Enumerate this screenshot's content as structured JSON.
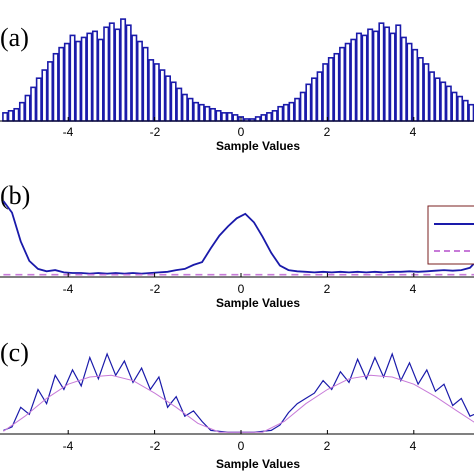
{
  "figure": {
    "panels": [
      {
        "label": "(a)",
        "xlabel": "Sample Values",
        "xticks": [
          -4,
          -2,
          0,
          2,
          4
        ],
        "xlim": [
          -5.5,
          5.5
        ]
      },
      {
        "label": "(b)",
        "xlabel": "Sample Values",
        "xticks": [
          -4,
          -2,
          0,
          2,
          4
        ],
        "xlim": [
          -5.5,
          5.5
        ],
        "legend": {
          "placement": "top-right",
          "entries": [
            {
              "style": "solid",
              "color": "#1a1aaa"
            },
            {
              "style": "dashed",
              "color": "#c77ad8"
            }
          ]
        }
      },
      {
        "label": "(c)",
        "xlabel": "Sample Values",
        "xticks": [
          -4,
          -2,
          0,
          2,
          4
        ],
        "xlim": [
          -5.5,
          5.5
        ]
      }
    ],
    "colors": {
      "primary": "#1a1aaa",
      "secondary": "#c77ad8",
      "axis": "#000000"
    }
  },
  "chart_data": [
    {
      "type": "bar",
      "panel": "(a)",
      "xlabel": "Sample Values",
      "xlim": [
        -5.5,
        5.5
      ],
      "ylim": [
        0,
        105
      ],
      "bar_width": 0.13,
      "x": [
        -5.46,
        -5.33,
        -5.2,
        -5.07,
        -4.94,
        -4.81,
        -4.68,
        -4.55,
        -4.42,
        -4.29,
        -4.16,
        -4.03,
        -3.9,
        -3.77,
        -3.64,
        -3.51,
        -3.38,
        -3.25,
        -3.12,
        -2.99,
        -2.86,
        -2.73,
        -2.6,
        -2.47,
        -2.34,
        -2.21,
        -2.08,
        -1.95,
        -1.82,
        -1.69,
        -1.56,
        -1.43,
        -1.3,
        -1.17,
        -1.04,
        -0.91,
        -0.78,
        -0.65,
        -0.52,
        -0.39,
        -0.26,
        -0.13,
        0.0,
        0.13,
        0.26,
        0.39,
        0.52,
        0.65,
        0.78,
        0.91,
        1.04,
        1.17,
        1.3,
        1.43,
        1.56,
        1.69,
        1.82,
        1.95,
        2.08,
        2.21,
        2.34,
        2.47,
        2.6,
        2.73,
        2.86,
        2.99,
        3.12,
        3.25,
        3.38,
        3.51,
        3.64,
        3.77,
        3.9,
        4.03,
        4.16,
        4.29,
        4.42,
        4.55,
        4.68,
        4.81,
        4.94,
        5.07,
        5.2,
        5.33,
        5.46
      ],
      "values": [
        8,
        10,
        12,
        18,
        25,
        33,
        42,
        50,
        58,
        66,
        72,
        76,
        84,
        78,
        82,
        86,
        88,
        80,
        92,
        96,
        90,
        100,
        94,
        84,
        78,
        72,
        60,
        56,
        50,
        44,
        38,
        32,
        26,
        22,
        18,
        16,
        14,
        12,
        10,
        8,
        8,
        6,
        4,
        2,
        2,
        4,
        6,
        8,
        10,
        14,
        16,
        18,
        22,
        28,
        36,
        42,
        48,
        56,
        62,
        66,
        72,
        76,
        80,
        86,
        84,
        90,
        88,
        96,
        92,
        86,
        94,
        82,
        76,
        70,
        62,
        56,
        48,
        42,
        38,
        34,
        28,
        24,
        20,
        16,
        14
      ]
    },
    {
      "type": "line",
      "panel": "(b)",
      "xlabel": "Sample Values",
      "xlim": [
        -5.5,
        5.5
      ],
      "ylim": [
        0,
        1.6
      ],
      "series": [
        {
          "style": "solid",
          "x": [
            -5.5,
            -5.3,
            -5.1,
            -4.9,
            -4.7,
            -4.5,
            -4.3,
            -4.1,
            -3.9,
            -3.7,
            -3.5,
            -3.3,
            -3.1,
            -2.9,
            -2.7,
            -2.5,
            -2.3,
            -2.1,
            -1.9,
            -1.7,
            -1.5,
            -1.3,
            -1.1,
            -0.9,
            -0.7,
            -0.5,
            -0.3,
            -0.1,
            0.1,
            0.3,
            0.5,
            0.7,
            0.9,
            1.1,
            1.3,
            1.5,
            1.7,
            1.9,
            2.1,
            2.3,
            2.5,
            2.7,
            2.9,
            3.1,
            3.3,
            3.5,
            3.7,
            3.9,
            4.1,
            4.3,
            4.5,
            4.7,
            4.9,
            5.1,
            5.3,
            5.5
          ],
          "values": [
            1.32,
            1.12,
            0.62,
            0.28,
            0.14,
            0.1,
            0.12,
            0.08,
            0.07,
            0.07,
            0.06,
            0.07,
            0.06,
            0.07,
            0.06,
            0.07,
            0.06,
            0.07,
            0.08,
            0.09,
            0.12,
            0.14,
            0.21,
            0.26,
            0.5,
            0.72,
            0.88,
            1.02,
            1.1,
            0.95,
            0.7,
            0.42,
            0.2,
            0.12,
            0.1,
            0.09,
            0.08,
            0.09,
            0.08,
            0.09,
            0.08,
            0.09,
            0.08,
            0.09,
            0.08,
            0.09,
            0.09,
            0.1,
            0.09,
            0.1,
            0.11,
            0.12,
            0.11,
            0.12,
            0.16,
            0.32
          ]
        },
        {
          "style": "dashed",
          "x": [
            -5.5,
            5.5
          ],
          "values": [
            0.04,
            0.04
          ]
        }
      ]
    },
    {
      "type": "line",
      "panel": "(c)",
      "xlabel": "Sample Values",
      "xlim": [
        -5.5,
        5.5
      ],
      "ylim": [
        0,
        1
      ],
      "series": [
        {
          "style": "solid",
          "x": [
            -5.5,
            -5.3,
            -5.1,
            -4.9,
            -4.7,
            -4.5,
            -4.3,
            -4.1,
            -3.9,
            -3.7,
            -3.5,
            -3.3,
            -3.1,
            -2.9,
            -2.7,
            -2.5,
            -2.3,
            -2.1,
            -1.9,
            -1.7,
            -1.5,
            -1.3,
            -1.1,
            -0.9,
            -0.7,
            -0.5,
            -0.3,
            -0.1,
            0.1,
            0.3,
            0.5,
            0.7,
            0.9,
            1.1,
            1.3,
            1.5,
            1.7,
            1.9,
            2.1,
            2.3,
            2.5,
            2.7,
            2.9,
            3.1,
            3.3,
            3.5,
            3.7,
            3.9,
            4.1,
            4.3,
            4.5,
            4.7,
            4.9,
            5.1,
            5.3,
            5.5
          ],
          "values": [
            0.04,
            0.08,
            0.3,
            0.22,
            0.5,
            0.34,
            0.66,
            0.5,
            0.72,
            0.54,
            0.86,
            0.62,
            0.9,
            0.66,
            0.82,
            0.58,
            0.74,
            0.5,
            0.64,
            0.3,
            0.42,
            0.2,
            0.26,
            0.14,
            0.04,
            0.03,
            0.02,
            0.02,
            0.02,
            0.02,
            0.03,
            0.04,
            0.1,
            0.24,
            0.34,
            0.4,
            0.46,
            0.6,
            0.5,
            0.7,
            0.58,
            0.84,
            0.62,
            0.86,
            0.64,
            0.9,
            0.6,
            0.8,
            0.56,
            0.72,
            0.48,
            0.56,
            0.32,
            0.4,
            0.2,
            0.24
          ]
        },
        {
          "style": "solid",
          "x": [
            -5.5,
            -5.0,
            -4.5,
            -4.0,
            -3.5,
            -3.0,
            -2.5,
            -2.0,
            -1.5,
            -1.0,
            -0.5,
            0.0,
            0.5,
            1.0,
            1.5,
            2.0,
            2.5,
            3.0,
            3.5,
            4.0,
            4.5,
            5.0,
            5.5
          ],
          "values": [
            0.03,
            0.2,
            0.4,
            0.56,
            0.64,
            0.66,
            0.6,
            0.46,
            0.3,
            0.12,
            0.02,
            0.02,
            0.02,
            0.14,
            0.34,
            0.5,
            0.62,
            0.66,
            0.64,
            0.56,
            0.42,
            0.26,
            0.1
          ]
        }
      ]
    }
  ]
}
